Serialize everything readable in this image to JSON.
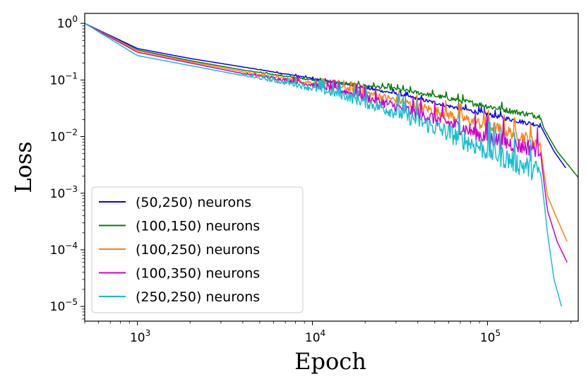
{
  "chart_data": {
    "type": "line",
    "xlabel": "Epoch",
    "ylabel": "Loss",
    "xscale": "log",
    "yscale": "log",
    "xlim": [
      500,
      330000
    ],
    "ylim": [
      5.5e-06,
      1.5
    ],
    "grid": false,
    "legend_position": "lower-left",
    "x_ticks": [
      {
        "value": 1000,
        "base": "10",
        "exp": "3"
      },
      {
        "value": 10000,
        "base": "10",
        "exp": "4"
      },
      {
        "value": 100000,
        "base": "10",
        "exp": "5"
      }
    ],
    "y_ticks": [
      {
        "value": 1,
        "base": "10",
        "exp": "0"
      },
      {
        "value": 0.1,
        "base": "10",
        "exp": "−1"
      },
      {
        "value": 0.01,
        "base": "10",
        "exp": "−2"
      },
      {
        "value": 0.001,
        "base": "10",
        "exp": "−3"
      },
      {
        "value": 0.0001,
        "base": "10",
        "exp": "−4"
      },
      {
        "value": 1e-05,
        "base": "10",
        "exp": "−5"
      }
    ],
    "series": [
      {
        "name": "(50,250) neurons",
        "color": "#0000ff",
        "noise": 0.08,
        "points": [
          [
            500,
            1.0
          ],
          [
            1000,
            0.36
          ],
          [
            2000,
            0.24
          ],
          [
            4000,
            0.17
          ],
          [
            8000,
            0.12
          ],
          [
            15000,
            0.085
          ],
          [
            30000,
            0.058
          ],
          [
            60000,
            0.035
          ],
          [
            100000,
            0.025
          ],
          [
            150000,
            0.019
          ],
          [
            200000,
            0.016
          ],
          [
            210000,
            0.012
          ],
          [
            240000,
            0.0055
          ],
          [
            280000,
            0.0028
          ]
        ]
      },
      {
        "name": "(100,150) neurons",
        "color": "#008000",
        "noise": 0.1,
        "points": [
          [
            500,
            1.0
          ],
          [
            1000,
            0.34
          ],
          [
            2000,
            0.22
          ],
          [
            4000,
            0.15
          ],
          [
            8000,
            0.11
          ],
          [
            15000,
            0.088
          ],
          [
            30000,
            0.07
          ],
          [
            60000,
            0.048
          ],
          [
            100000,
            0.035
          ],
          [
            150000,
            0.027
          ],
          [
            200000,
            0.023
          ],
          [
            210000,
            0.014
          ],
          [
            250000,
            0.0055
          ],
          [
            330000,
            0.0019
          ]
        ]
      },
      {
        "name": "(100,250) neurons",
        "color": "#ff7f0e",
        "noise": 0.22,
        "points": [
          [
            500,
            1.0
          ],
          [
            1000,
            0.33
          ],
          [
            2000,
            0.21
          ],
          [
            4000,
            0.14
          ],
          [
            8000,
            0.1
          ],
          [
            15000,
            0.075
          ],
          [
            30000,
            0.045
          ],
          [
            60000,
            0.025
          ],
          [
            100000,
            0.016
          ],
          [
            150000,
            0.011
          ],
          [
            200000,
            0.008
          ],
          [
            205000,
            0.004
          ],
          [
            220000,
            0.0009
          ],
          [
            250000,
            0.00035
          ],
          [
            285000,
            0.00014
          ]
        ]
      },
      {
        "name": "(100,350) neurons",
        "color": "#cc00cc",
        "noise": 0.3,
        "points": [
          [
            500,
            1.0
          ],
          [
            1000,
            0.31
          ],
          [
            2000,
            0.2
          ],
          [
            4000,
            0.13
          ],
          [
            8000,
            0.095
          ],
          [
            15000,
            0.065
          ],
          [
            30000,
            0.035
          ],
          [
            60000,
            0.018
          ],
          [
            100000,
            0.01
          ],
          [
            150000,
            0.0072
          ],
          [
            200000,
            0.0062
          ],
          [
            205000,
            0.003
          ],
          [
            220000,
            0.0005
          ],
          [
            250000,
            0.00014
          ],
          [
            285000,
            6e-05
          ]
        ]
      },
      {
        "name": "(250,250) neurons",
        "color": "#17becf",
        "noise": 0.4,
        "points": [
          [
            500,
            1.0
          ],
          [
            1000,
            0.27
          ],
          [
            2000,
            0.18
          ],
          [
            4000,
            0.12
          ],
          [
            8000,
            0.085
          ],
          [
            15000,
            0.055
          ],
          [
            30000,
            0.028
          ],
          [
            60000,
            0.012
          ],
          [
            100000,
            0.006
          ],
          [
            150000,
            0.0035
          ],
          [
            200000,
            0.0025
          ],
          [
            205000,
            0.0015
          ],
          [
            220000,
            0.0002
          ],
          [
            240000,
            3e-05
          ],
          [
            265000,
            1e-05
          ]
        ]
      }
    ]
  }
}
